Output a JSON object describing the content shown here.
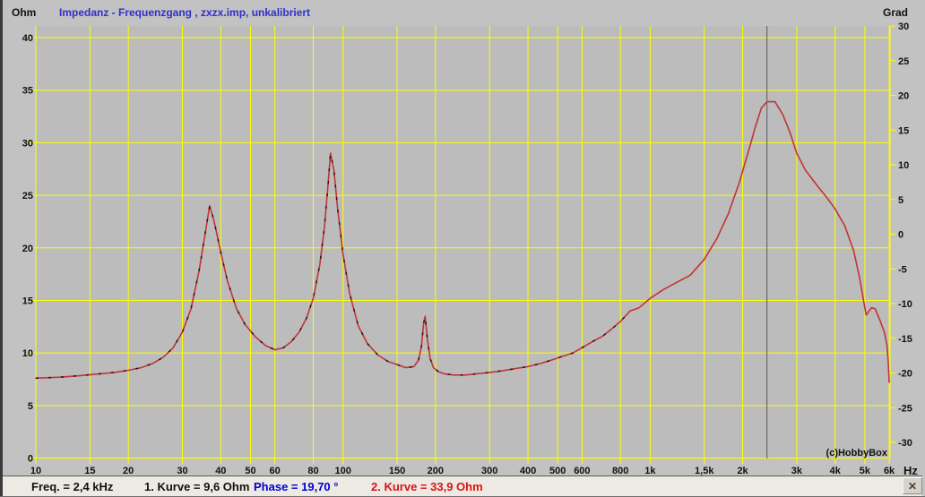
{
  "window": {
    "bg_color": "#c2c2c2",
    "plot_bg_color": "#bcbcbc",
    "grid_color": "#ffff00"
  },
  "header": {
    "left_axis_unit": "Ohm",
    "right_axis_unit": "Grad",
    "title": "Impedanz - Frequenzgang , zxzx.imp, unkalibriert",
    "title_color": "#3030cc"
  },
  "chart_data": {
    "type": "line",
    "x_scale": "log",
    "x_axis": {
      "unit_label": "Hz",
      "min": 10,
      "max": 6000,
      "ticks": [
        {
          "value": 10,
          "label": "10"
        },
        {
          "value": 15,
          "label": "15"
        },
        {
          "value": 20,
          "label": "20"
        },
        {
          "value": 30,
          "label": "30"
        },
        {
          "value": 40,
          "label": "40"
        },
        {
          "value": 50,
          "label": "50"
        },
        {
          "value": 60,
          "label": "60"
        },
        {
          "value": 80,
          "label": "80"
        },
        {
          "value": 100,
          "label": "100"
        },
        {
          "value": 150,
          "label": "150"
        },
        {
          "value": 200,
          "label": "200"
        },
        {
          "value": 300,
          "label": "300"
        },
        {
          "value": 400,
          "label": "400"
        },
        {
          "value": 500,
          "label": "500"
        },
        {
          "value": 600,
          "label": "600"
        },
        {
          "value": 800,
          "label": "800"
        },
        {
          "value": 1000,
          "label": "1k"
        },
        {
          "value": 1500,
          "label": "1,5k"
        },
        {
          "value": 2000,
          "label": "2k"
        },
        {
          "value": 3000,
          "label": "3k"
        },
        {
          "value": 4000,
          "label": "4k"
        },
        {
          "value": 5000,
          "label": "5k"
        },
        {
          "value": 6000,
          "label": "6k"
        }
      ]
    },
    "left_axis": {
      "label": "Ohm",
      "min": 0,
      "max": 41,
      "ticks": [
        40,
        35,
        30,
        25,
        20,
        15,
        10,
        5,
        0
      ]
    },
    "right_axis": {
      "label": "Grad",
      "min": -32,
      "max": 30,
      "ticks": [
        30,
        25,
        20,
        15,
        10,
        5,
        0,
        -5,
        -10,
        -15,
        -20,
        -25,
        -30
      ]
    },
    "cursor": {
      "freq_hz": 2400,
      "color": "#5a5a5a"
    },
    "watermark": "(c)HobbyBox",
    "series": [
      {
        "name": "1. Kurve",
        "color": "#241414",
        "line_style": "dashed",
        "points": [
          [
            10,
            7.6
          ],
          [
            12,
            7.7
          ],
          [
            14,
            7.85
          ],
          [
            16,
            8.0
          ],
          [
            18,
            8.15
          ],
          [
            20,
            8.35
          ],
          [
            22,
            8.6
          ],
          [
            24,
            9.0
          ],
          [
            26,
            9.6
          ],
          [
            28,
            10.5
          ],
          [
            30,
            12.0
          ],
          [
            32,
            14.2
          ],
          [
            34,
            17.8
          ],
          [
            35.5,
            21.2
          ],
          [
            36.8,
            24.0
          ],
          [
            38,
            22.6
          ],
          [
            40,
            19.6
          ],
          [
            42,
            16.9
          ],
          [
            45,
            14.2
          ],
          [
            48,
            12.7
          ],
          [
            52,
            11.5
          ],
          [
            56,
            10.7
          ],
          [
            60,
            10.3
          ],
          [
            64,
            10.5
          ],
          [
            68,
            11.1
          ],
          [
            72,
            12.0
          ],
          [
            76,
            13.3
          ],
          [
            80,
            15.2
          ],
          [
            84,
            18.4
          ],
          [
            87,
            22.0
          ],
          [
            89.5,
            26.2
          ],
          [
            91,
            29.0
          ],
          [
            93.5,
            27.3
          ],
          [
            96,
            23.8
          ],
          [
            100,
            19.4
          ],
          [
            105,
            15.7
          ],
          [
            112,
            12.6
          ],
          [
            120,
            10.9
          ],
          [
            130,
            9.8
          ],
          [
            140,
            9.2
          ],
          [
            150,
            8.9
          ],
          [
            160,
            8.6
          ],
          [
            170,
            8.7
          ],
          [
            176,
            9.3
          ],
          [
            180,
            10.6
          ],
          [
            183,
            12.8
          ],
          [
            185,
            13.5
          ],
          [
            188,
            11.4
          ],
          [
            192,
            9.5
          ],
          [
            197,
            8.6
          ],
          [
            205,
            8.2
          ],
          [
            215,
            8.0
          ],
          [
            230,
            7.9
          ],
          [
            250,
            7.9
          ],
          [
            270,
            8.0
          ],
          [
            300,
            8.15
          ],
          [
            330,
            8.3
          ],
          [
            370,
            8.55
          ],
          [
            400,
            8.7
          ],
          [
            440,
            9.0
          ],
          [
            480,
            9.35
          ],
          [
            520,
            9.7
          ],
          [
            560,
            10.0
          ],
          [
            600,
            10.5
          ],
          [
            650,
            11.1
          ],
          [
            700,
            11.6
          ],
          [
            750,
            12.3
          ],
          [
            800,
            13.0
          ],
          [
            860,
            14.0
          ]
        ]
      },
      {
        "name": "2. Kurve",
        "color": "#c23434",
        "line_style": "solid",
        "points": [
          [
            10,
            7.6
          ],
          [
            12,
            7.7
          ],
          [
            14,
            7.85
          ],
          [
            16,
            8.0
          ],
          [
            18,
            8.15
          ],
          [
            20,
            8.35
          ],
          [
            22,
            8.6
          ],
          [
            24,
            9.0
          ],
          [
            26,
            9.6
          ],
          [
            28,
            10.5
          ],
          [
            30,
            12.0
          ],
          [
            32,
            14.2
          ],
          [
            34,
            17.8
          ],
          [
            35.5,
            21.2
          ],
          [
            36.8,
            24.0
          ],
          [
            38,
            22.6
          ],
          [
            40,
            19.6
          ],
          [
            42,
            16.9
          ],
          [
            45,
            14.2
          ],
          [
            48,
            12.7
          ],
          [
            52,
            11.5
          ],
          [
            56,
            10.7
          ],
          [
            60,
            10.3
          ],
          [
            64,
            10.5
          ],
          [
            68,
            11.1
          ],
          [
            72,
            12.0
          ],
          [
            76,
            13.3
          ],
          [
            80,
            15.2
          ],
          [
            84,
            18.4
          ],
          [
            87,
            22.0
          ],
          [
            89.5,
            26.2
          ],
          [
            91,
            29.0
          ],
          [
            93.5,
            27.3
          ],
          [
            96,
            23.8
          ],
          [
            100,
            19.4
          ],
          [
            105,
            15.7
          ],
          [
            112,
            12.6
          ],
          [
            120,
            10.9
          ],
          [
            130,
            9.8
          ],
          [
            140,
            9.2
          ],
          [
            150,
            8.9
          ],
          [
            160,
            8.6
          ],
          [
            170,
            8.7
          ],
          [
            176,
            9.3
          ],
          [
            180,
            10.6
          ],
          [
            183,
            12.8
          ],
          [
            185,
            13.5
          ],
          [
            188,
            11.4
          ],
          [
            192,
            9.5
          ],
          [
            197,
            8.6
          ],
          [
            205,
            8.2
          ],
          [
            215,
            8.0
          ],
          [
            230,
            7.9
          ],
          [
            250,
            7.9
          ],
          [
            270,
            8.0
          ],
          [
            300,
            8.15
          ],
          [
            330,
            8.3
          ],
          [
            370,
            8.55
          ],
          [
            400,
            8.7
          ],
          [
            440,
            9.0
          ],
          [
            480,
            9.35
          ],
          [
            520,
            9.7
          ],
          [
            560,
            10.0
          ],
          [
            600,
            10.5
          ],
          [
            650,
            11.1
          ],
          [
            700,
            11.6
          ],
          [
            750,
            12.3
          ],
          [
            800,
            13.0
          ],
          [
            860,
            14.0
          ],
          [
            920,
            14.3
          ],
          [
            1000,
            15.2
          ],
          [
            1100,
            16.0
          ],
          [
            1200,
            16.6
          ],
          [
            1350,
            17.4
          ],
          [
            1500,
            18.9
          ],
          [
            1650,
            20.9
          ],
          [
            1800,
            23.3
          ],
          [
            1950,
            26.2
          ],
          [
            2100,
            29.4
          ],
          [
            2200,
            31.5
          ],
          [
            2300,
            33.3
          ],
          [
            2400,
            33.9
          ],
          [
            2550,
            33.9
          ],
          [
            2700,
            32.7
          ],
          [
            2850,
            31.0
          ],
          [
            3000,
            29.0
          ],
          [
            3200,
            27.4
          ],
          [
            3500,
            25.9
          ],
          [
            3800,
            24.6
          ],
          [
            4000,
            23.7
          ],
          [
            4300,
            22.1
          ],
          [
            4600,
            19.7
          ],
          [
            4800,
            17.2
          ],
          [
            4950,
            15.0
          ],
          [
            5050,
            13.6
          ],
          [
            5250,
            14.3
          ],
          [
            5400,
            14.2
          ],
          [
            5600,
            13.1
          ],
          [
            5800,
            11.9
          ],
          [
            5900,
            10.7
          ],
          [
            5950,
            9.4
          ],
          [
            6000,
            7.2
          ]
        ]
      }
    ]
  },
  "status_bar": {
    "freq_readout": "Freq. = 2,4 kHz",
    "curve1_readout": "1. Kurve = 9,6 Ohm",
    "phase_readout": "Phase = 19,70 °",
    "curve2_readout": "2. Kurve = 33,9 Ohm",
    "close_glyph": "✕"
  }
}
